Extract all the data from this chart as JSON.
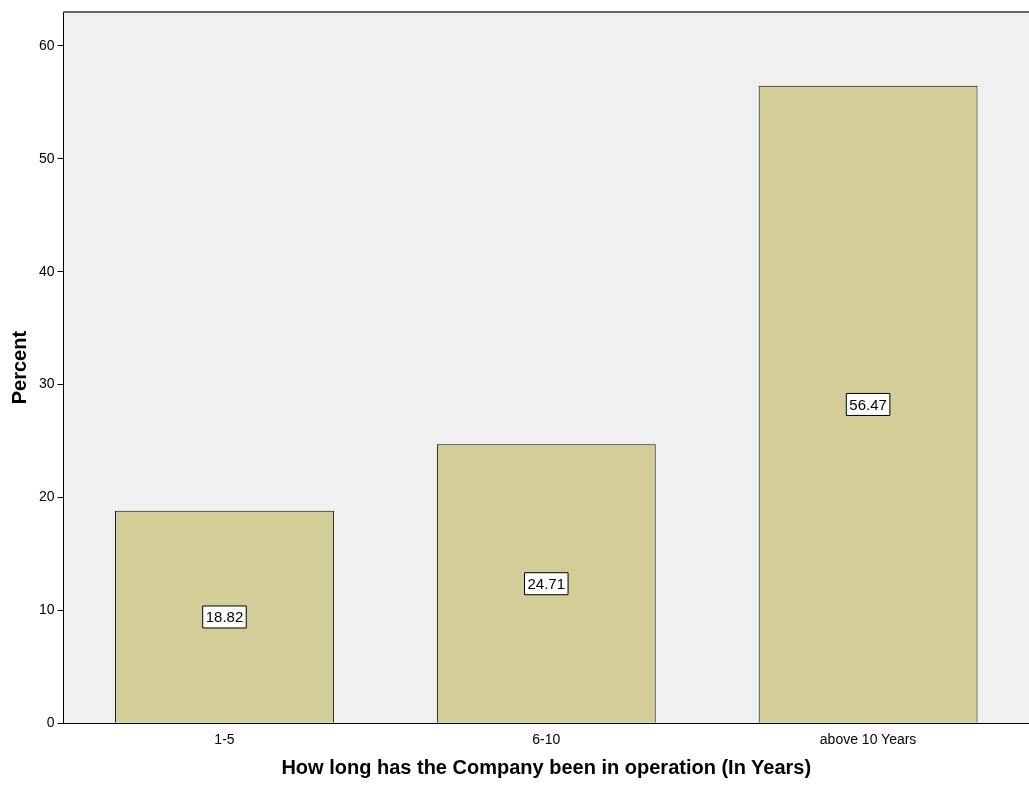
{
  "chart_data": {
    "type": "bar",
    "xlabel": "How long has the Company been in operation (In Years)",
    "ylabel": "Percent",
    "categories": [
      "1-5",
      "6-10",
      "above 10 Years"
    ],
    "values": [
      18.82,
      24.71,
      56.47
    ],
    "color": "#d3ce97",
    "ylim": [
      0,
      63
    ],
    "yticks": [
      0,
      10,
      20,
      30,
      40,
      50,
      60
    ],
    "grid": false,
    "legend": false,
    "data_labels": true
  }
}
